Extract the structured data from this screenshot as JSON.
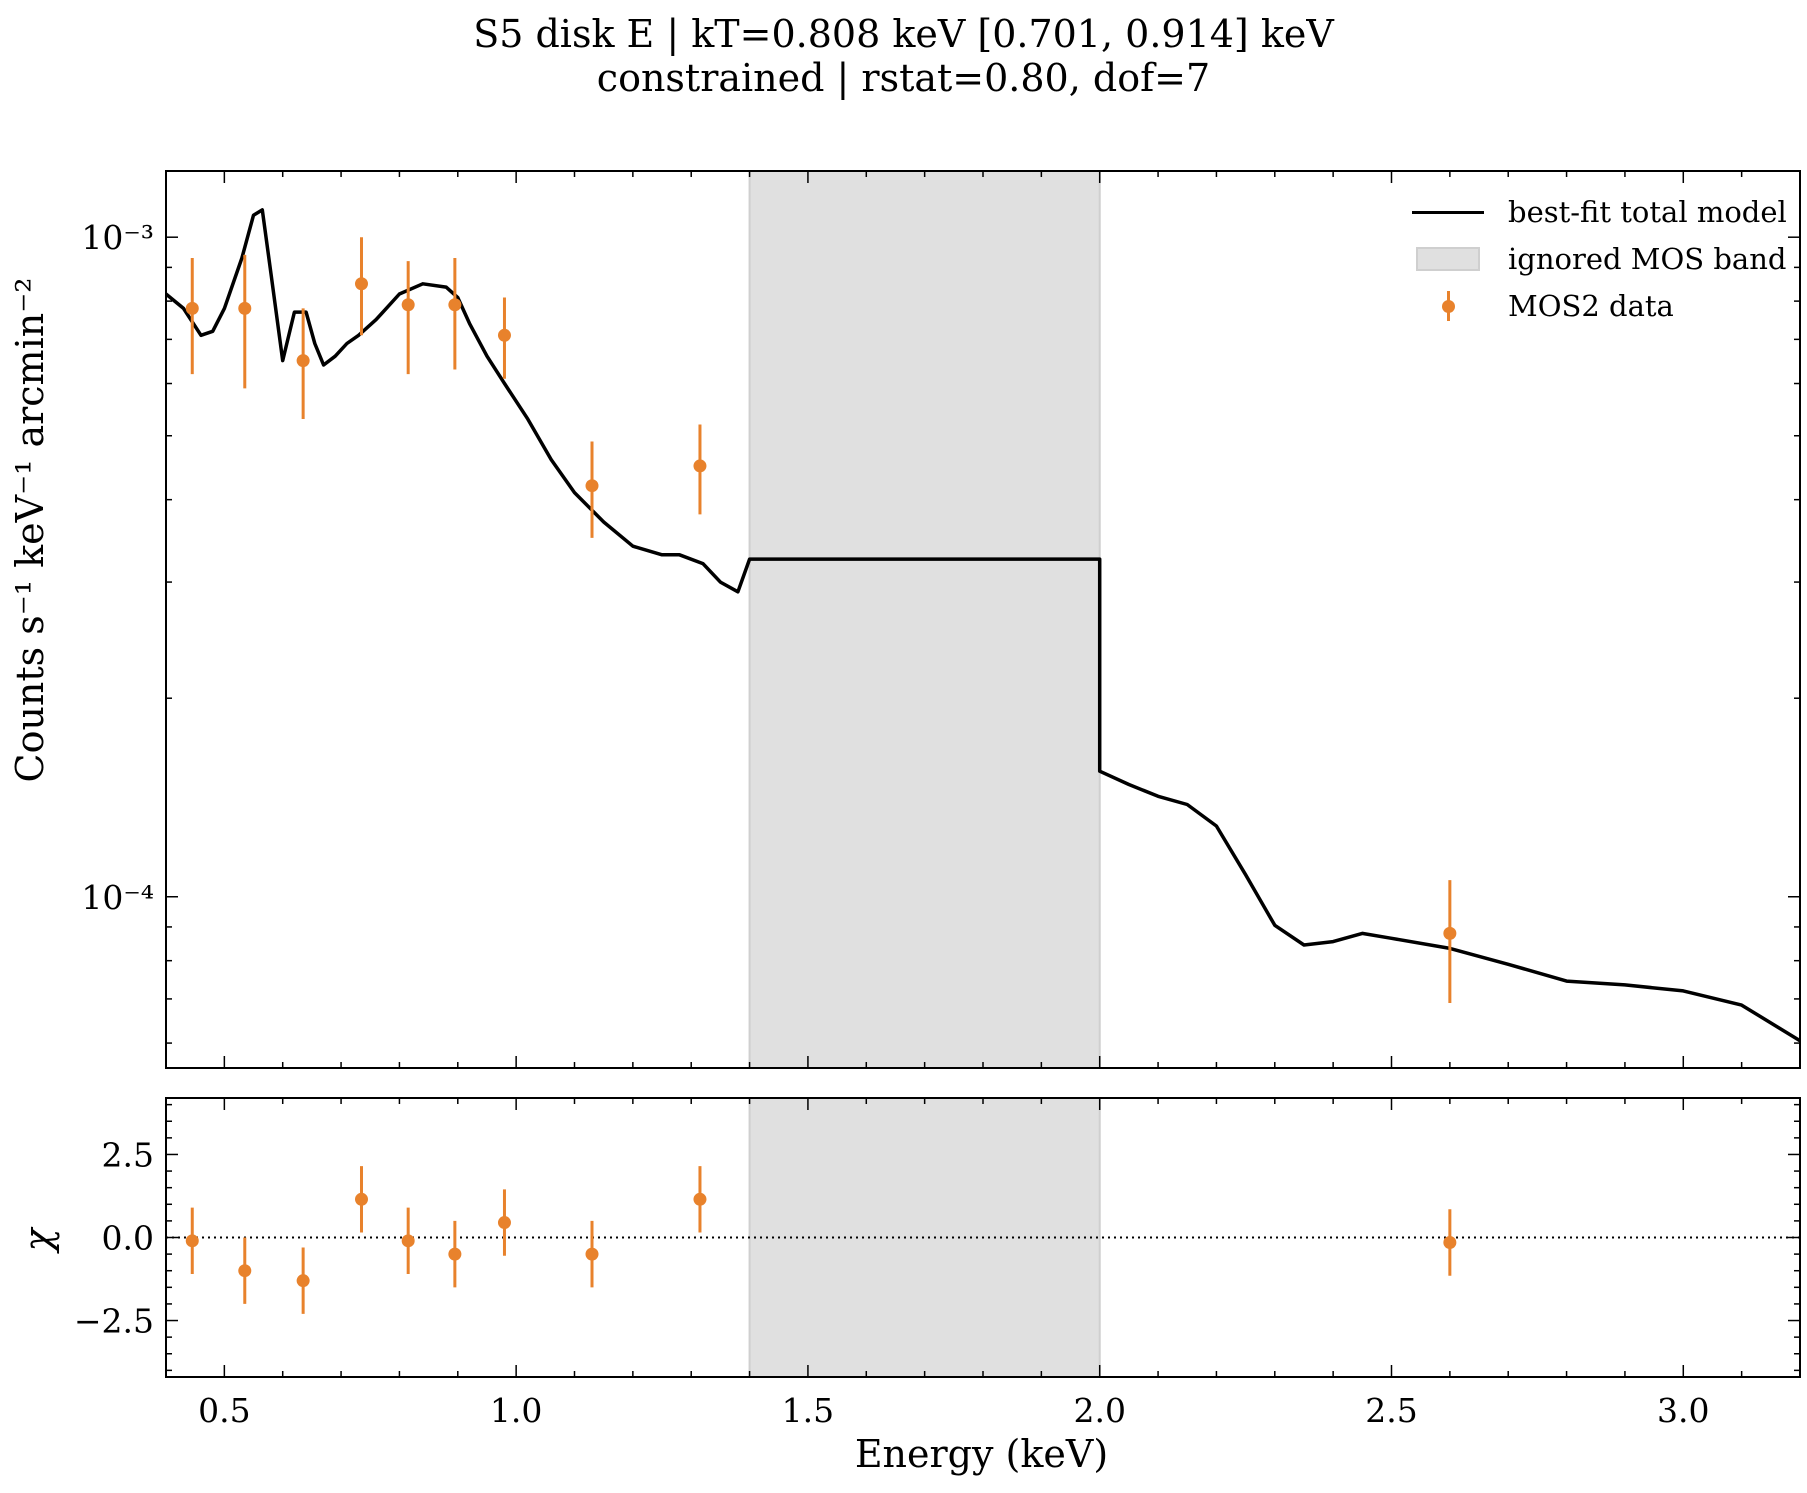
{
  "title_line1": "S5 disk E | kT=0.808 keV [0.701, 0.914] keV",
  "title_line2": "constrained | rstat=0.80, dof=7",
  "colors": {
    "data": "#e8822c",
    "model": "#000000",
    "band_fill": "#e0e0e0",
    "band_edge": "#cfcfcf"
  },
  "chart_data": [
    {
      "type": "line",
      "panel": "spectrum",
      "xlabel": "Energy (keV)",
      "ylabel": "Counts s⁻¹ keV⁻¹ arcmin⁻²",
      "xlim": [
        0.4,
        3.2
      ],
      "ylim": [
        5.5e-05,
        0.00126
      ],
      "yscale": "log",
      "x_ticks": [
        "0.5",
        "1.0",
        "1.5",
        "2.0",
        "2.5",
        "3.0"
      ],
      "y_ticks": [
        {
          "value": 0.001,
          "label": "10⁻³"
        },
        {
          "value": 0.0001,
          "label": "10⁻⁴"
        }
      ],
      "shaded_band": {
        "label": "ignored MOS band",
        "x": [
          1.4,
          2.0
        ]
      },
      "model": {
        "name": "best-fit total model",
        "x": [
          0.4,
          0.43,
          0.46,
          0.48,
          0.5,
          0.53,
          0.55,
          0.565,
          0.58,
          0.6,
          0.62,
          0.64,
          0.655,
          0.67,
          0.69,
          0.71,
          0.73,
          0.76,
          0.8,
          0.84,
          0.88,
          0.9,
          0.92,
          0.95,
          0.98,
          1.02,
          1.06,
          1.1,
          1.15,
          1.2,
          1.25,
          1.28,
          1.32,
          1.35,
          1.38,
          1.4,
          2.0,
          2.0,
          2.05,
          2.1,
          2.15,
          2.2,
          2.25,
          2.3,
          2.35,
          2.4,
          2.45,
          2.5,
          2.6,
          2.7,
          2.8,
          2.9,
          3.0,
          3.1,
          3.2
        ],
        "y": [
          0.00082,
          0.00078,
          0.00071,
          0.00072,
          0.00078,
          0.00093,
          0.00108,
          0.0011,
          0.00088,
          0.00065,
          0.00077,
          0.00077,
          0.00069,
          0.00064,
          0.00066,
          0.00069,
          0.00071,
          0.00075,
          0.00082,
          0.00085,
          0.00084,
          0.00081,
          0.00074,
          0.00066,
          0.0006,
          0.00053,
          0.00046,
          0.00041,
          0.00037,
          0.00034,
          0.00033,
          0.00033,
          0.00032,
          0.0003,
          0.00029,
          0.000325,
          0.000325,
          0.000155,
          0.000148,
          0.000142,
          0.000138,
          0.000128,
          0.000108,
          9.05e-05,
          8.45e-05,
          8.55e-05,
          8.8e-05,
          8.65e-05,
          8.35e-05,
          7.9e-05,
          7.45e-05,
          7.35e-05,
          7.2e-05,
          6.85e-05,
          6.05e-05
        ]
      },
      "data": {
        "name": "MOS2 data",
        "x": [
          0.445,
          0.535,
          0.635,
          0.735,
          0.815,
          0.895,
          0.98,
          1.13,
          1.315,
          2.6
        ],
        "y": [
          0.00078,
          0.00078,
          0.00065,
          0.00085,
          0.00079,
          0.00079,
          0.00071,
          0.00042,
          0.00045,
          8.8e-05
        ],
        "yerr_low": [
          0.00016,
          0.00019,
          0.00012,
          0.00014,
          0.00017,
          0.00016,
          0.0001,
          7e-05,
          7e-05,
          1.9e-05
        ],
        "yerr_high": [
          0.00015,
          0.00016,
          0.00013,
          0.00015,
          0.00013,
          0.00014,
          0.0001,
          7e-05,
          7e-05,
          1.8e-05
        ]
      },
      "legend": [
        "best-fit total model",
        "ignored MOS band",
        "MOS2 data"
      ],
      "legend_placement": "top-right"
    },
    {
      "type": "scatter",
      "panel": "residuals",
      "xlabel": "Energy (keV)",
      "ylabel": "χ",
      "xlim": [
        0.4,
        3.2
      ],
      "ylim": [
        -4.2,
        4.2
      ],
      "x_ticks": [
        "0.5",
        "1.0",
        "1.5",
        "2.0",
        "2.5",
        "3.0"
      ],
      "y_ticks": [
        "2.5",
        "0.0",
        "−2.5"
      ],
      "y_tick_values": [
        2.5,
        0.0,
        -2.5
      ],
      "reference_line": 0,
      "shaded_band": {
        "x": [
          1.4,
          2.0
        ]
      },
      "x": [
        0.445,
        0.535,
        0.635,
        0.735,
        0.815,
        0.895,
        0.98,
        1.13,
        1.315,
        2.6
      ],
      "y": [
        -0.1,
        -1.0,
        -1.3,
        1.15,
        -0.1,
        -0.5,
        0.45,
        -0.5,
        1.15,
        -0.15
      ],
      "yerr": [
        1.0,
        1.0,
        1.0,
        1.0,
        1.0,
        1.0,
        1.0,
        1.0,
        1.0,
        1.0
      ]
    }
  ]
}
